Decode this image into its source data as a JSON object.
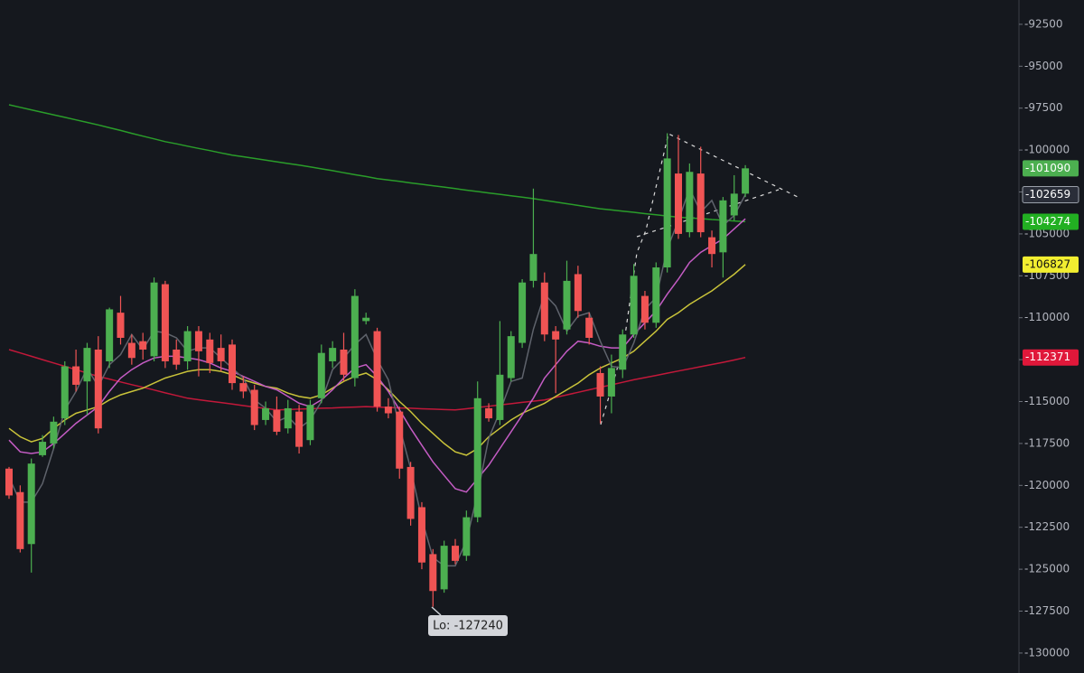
{
  "chart_data": {
    "type": "candlestick",
    "categories": [
      null,
      null,
      null,
      null,
      null,
      null,
      null,
      null,
      null,
      null,
      null,
      null,
      null,
      null,
      null,
      null,
      null,
      null,
      null,
      null,
      null,
      null,
      null,
      null,
      null,
      null,
      null,
      null,
      null,
      null,
      null,
      null,
      null,
      null,
      null,
      null,
      null,
      null,
      null,
      null,
      null,
      null,
      null,
      null,
      null,
      null,
      null,
      null,
      null,
      null,
      null,
      null,
      null,
      null,
      null,
      null,
      null,
      null,
      null,
      null,
      null,
      null,
      null,
      null,
      null,
      null,
      null
    ],
    "open": [
      -119000,
      -120400,
      -123500,
      -118200,
      -117500,
      -116000,
      -112900,
      -113800,
      -111900,
      -112600,
      -109700,
      -111500,
      -111400,
      -112300,
      -108000,
      -111900,
      -112600,
      -110800,
      -111300,
      -111800,
      -111600,
      -113900,
      -114300,
      -116100,
      -115500,
      -116600,
      -115600,
      -117300,
      -114800,
      -112600,
      -111900,
      -113600,
      -110200,
      -110800,
      -115300,
      -115600,
      -118900,
      -121300,
      -124100,
      -126200,
      -123600,
      -124200,
      -121900,
      -115400,
      -116100,
      -113600,
      -111500,
      -107800,
      -107900,
      -110800,
      -110700,
      -107400,
      -110000,
      -113300,
      -114700,
      -113100,
      -111000,
      -108700,
      -110300,
      -107000,
      -101400,
      -104900,
      -101400,
      -105200,
      -106100,
      -103900,
      -102600
    ],
    "close": [
      -120600,
      -123800,
      -118700,
      -117400,
      -116200,
      -112900,
      -114000,
      -111800,
      -116600,
      -109500,
      -111200,
      -112400,
      -111900,
      -107900,
      -112600,
      -112800,
      -110800,
      -112000,
      -112700,
      -112600,
      -113900,
      -114400,
      -116400,
      -115400,
      -116800,
      -115400,
      -117700,
      -115200,
      -112100,
      -111800,
      -113400,
      -108700,
      -110000,
      -115300,
      -115700,
      -119000,
      -122000,
      -124600,
      -126300,
      -123600,
      -124500,
      -121900,
      -114800,
      -116000,
      -113400,
      -111100,
      -107900,
      -106200,
      -111000,
      -111300,
      -107800,
      -109600,
      -111200,
      -114700,
      -113000,
      -111000,
      -107500,
      -110300,
      -107000,
      -100500,
      -105000,
      -101300,
      -104900,
      -106200,
      -103000,
      -102600,
      -101090
    ],
    "high": [
      -118900,
      -120000,
      -118400,
      -117000,
      -115900,
      -112600,
      -111900,
      -111500,
      -111100,
      -109400,
      -108700,
      -111000,
      -110900,
      -107600,
      -107800,
      -111300,
      -110500,
      -110500,
      -110900,
      -111000,
      -111300,
      -113500,
      -114000,
      -115000,
      -114700,
      -114900,
      -115200,
      -114900,
      -111600,
      -111400,
      -110900,
      -108300,
      -109700,
      -110600,
      -114800,
      -115300,
      -118600,
      -121000,
      -123800,
      -123300,
      -123200,
      -121500,
      -113800,
      -115100,
      -110200,
      -110800,
      -107700,
      -102300,
      -107300,
      -110500,
      -106600,
      -106900,
      -109700,
      -112900,
      -112200,
      -110700,
      -106800,
      -108400,
      -106700,
      -99000,
      -99100,
      -100800,
      -99800,
      -104800,
      -102800,
      -101500,
      -100900
    ],
    "low": [
      -120800,
      -124000,
      -125200,
      -118300,
      -117800,
      -116400,
      -114400,
      -115800,
      -116900,
      -113000,
      -111600,
      -112800,
      -112500,
      -112600,
      -113000,
      -113100,
      -113100,
      -113500,
      -113300,
      -113200,
      -114300,
      -114800,
      -116700,
      -116400,
      -117000,
      -116900,
      -118100,
      -117600,
      -115100,
      -113000,
      -113800,
      -114100,
      -110400,
      -115600,
      -116000,
      -119600,
      -122400,
      -125000,
      -127240,
      -126400,
      -124700,
      -124500,
      -122200,
      -116200,
      -116400,
      -113800,
      -111800,
      -108200,
      -111400,
      -114500,
      -111000,
      -110000,
      -111600,
      -116300,
      -115700,
      -113600,
      -111200,
      -110700,
      -110600,
      -107300,
      -105300,
      -105200,
      -105200,
      -107000,
      -107600,
      -104200,
      -102800
    ],
    "up_color": "#4caf50",
    "down_color": "#f05454",
    "price_tag": true,
    "series": [
      {
        "color": "#2a9d2a",
        "price_tag": true,
        "tag_color": "#22b022",
        "values": [
          -97300,
          -97450,
          -97600,
          -97750,
          -97900,
          -98050,
          -98200,
          -98350,
          -98500,
          -98670,
          -98830,
          -99000,
          -99170,
          -99330,
          -99500,
          -99630,
          -99770,
          -99900,
          -100030,
          -100170,
          -100300,
          -100400,
          -100500,
          -100600,
          -100700,
          -100800,
          -100900,
          -101000,
          -101120,
          -101230,
          -101350,
          -101470,
          -101580,
          -101700,
          -101790,
          -101870,
          -101960,
          -102040,
          -102130,
          -102210,
          -102300,
          -102390,
          -102470,
          -102560,
          -102640,
          -102730,
          -102810,
          -102900,
          -103000,
          -103100,
          -103200,
          -103300,
          -103400,
          -103500,
          -103570,
          -103640,
          -103710,
          -103790,
          -103860,
          -103930,
          -104000,
          -104050,
          -104090,
          -104140,
          -104180,
          -104230,
          -104274
        ]
      },
      {
        "color": "#c2183a",
        "price_tag": true,
        "tag_color": "#e0183a",
        "values": [
          -111900,
          -112100,
          -112300,
          -112500,
          -112700,
          -112900,
          -113100,
          -113300,
          -113500,
          -113660,
          -113830,
          -113990,
          -114150,
          -114310,
          -114480,
          -114640,
          -114800,
          -114890,
          -114980,
          -115060,
          -115150,
          -115240,
          -115330,
          -115410,
          -115500,
          -115480,
          -115450,
          -115430,
          -115400,
          -115380,
          -115350,
          -115330,
          -115300,
          -115330,
          -115350,
          -115380,
          -115400,
          -115430,
          -115450,
          -115480,
          -115500,
          -115430,
          -115350,
          -115280,
          -115200,
          -115130,
          -115050,
          -114980,
          -114900,
          -114750,
          -114600,
          -114450,
          -114300,
          -114150,
          -114000,
          -113850,
          -113700,
          -113570,
          -113440,
          -113310,
          -113180,
          -113050,
          -112920,
          -112790,
          -112660,
          -112520,
          -112371
        ]
      },
      {
        "color": "#c9c33a",
        "price_tag": true,
        "tag_color": "#f2ee30",
        "values": [
          -116600,
          -117100,
          -117400,
          -117200,
          -116600,
          -116100,
          -115700,
          -115500,
          -115300,
          -114900,
          -114600,
          -114400,
          -114200,
          -113900,
          -113600,
          -113400,
          -113200,
          -113100,
          -113100,
          -113200,
          -113400,
          -113700,
          -113900,
          -114100,
          -114200,
          -114500,
          -114700,
          -114800,
          -114600,
          -114200,
          -113800,
          -113500,
          -113300,
          -113700,
          -114300,
          -115000,
          -115600,
          -116300,
          -116900,
          -117500,
          -118000,
          -118200,
          -117800,
          -117100,
          -116600,
          -116100,
          -115700,
          -115400,
          -115100,
          -114700,
          -114300,
          -113900,
          -113400,
          -113000,
          -112700,
          -112400,
          -112000,
          -111400,
          -110800,
          -110100,
          -109700,
          -109200,
          -108800,
          -108400,
          -107900,
          -107400,
          -106827
        ]
      },
      {
        "color": "#c45cc4",
        "price_tag": false,
        "tag_color": "#c45cc4",
        "values": [
          -117300,
          -118000,
          -118100,
          -118000,
          -117500,
          -116900,
          -116300,
          -115800,
          -115300,
          -114400,
          -113600,
          -113100,
          -112700,
          -112400,
          -112300,
          -112300,
          -112400,
          -112500,
          -112700,
          -113000,
          -113200,
          -113500,
          -113800,
          -114100,
          -114300,
          -114700,
          -115100,
          -115300,
          -114900,
          -114300,
          -113600,
          -113000,
          -112800,
          -113500,
          -114400,
          -115500,
          -116600,
          -117600,
          -118600,
          -119400,
          -120200,
          -120400,
          -119600,
          -118800,
          -117800,
          -116800,
          -115800,
          -114800,
          -113600,
          -112800,
          -112000,
          -111400,
          -111500,
          -111700,
          -111800,
          -111800,
          -111000,
          -110300,
          -109600,
          -108600,
          -107700,
          -106700,
          -106100,
          -105700,
          -105300,
          -104700,
          -104100
        ]
      },
      {
        "color": "#5f636c",
        "price_tag": true,
        "tag_color": "#2a2e39",
        "values": [
          -119500,
          -121000,
          -121000,
          -119900,
          -117800,
          -115500,
          -114400,
          -113000,
          -114100,
          -112800,
          -112200,
          -111000,
          -111900,
          -110800,
          -110900,
          -111200,
          -112000,
          -111800,
          -111800,
          -112400,
          -113000,
          -113600,
          -114900,
          -115400,
          -116200,
          -115900,
          -116600,
          -116100,
          -115000,
          -113100,
          -112400,
          -111600,
          -111000,
          -112500,
          -113700,
          -116500,
          -119000,
          -122000,
          -124300,
          -124800,
          -124800,
          -123300,
          -120500,
          -117200,
          -115600,
          -113800,
          -113600,
          -110700,
          -108600,
          -109300,
          -110800,
          -109900,
          -109700,
          -111400,
          -112900,
          -113000,
          -111500,
          -109500,
          -108800,
          -105900,
          -104200,
          -102300,
          -103700,
          -103000,
          -104500,
          -103900,
          -102659
        ]
      }
    ],
    "annotation": "Lo: -127240",
    "ylim": [
      -131190,
      -91050
    ],
    "yticks": [
      -92500,
      -95000,
      -97500,
      -100000,
      -102500,
      -105000,
      -107500,
      -110000,
      -112500,
      -115000,
      -117500,
      -120000,
      -122500,
      -125000,
      -127500,
      -130000
    ],
    "grid": false
  }
}
